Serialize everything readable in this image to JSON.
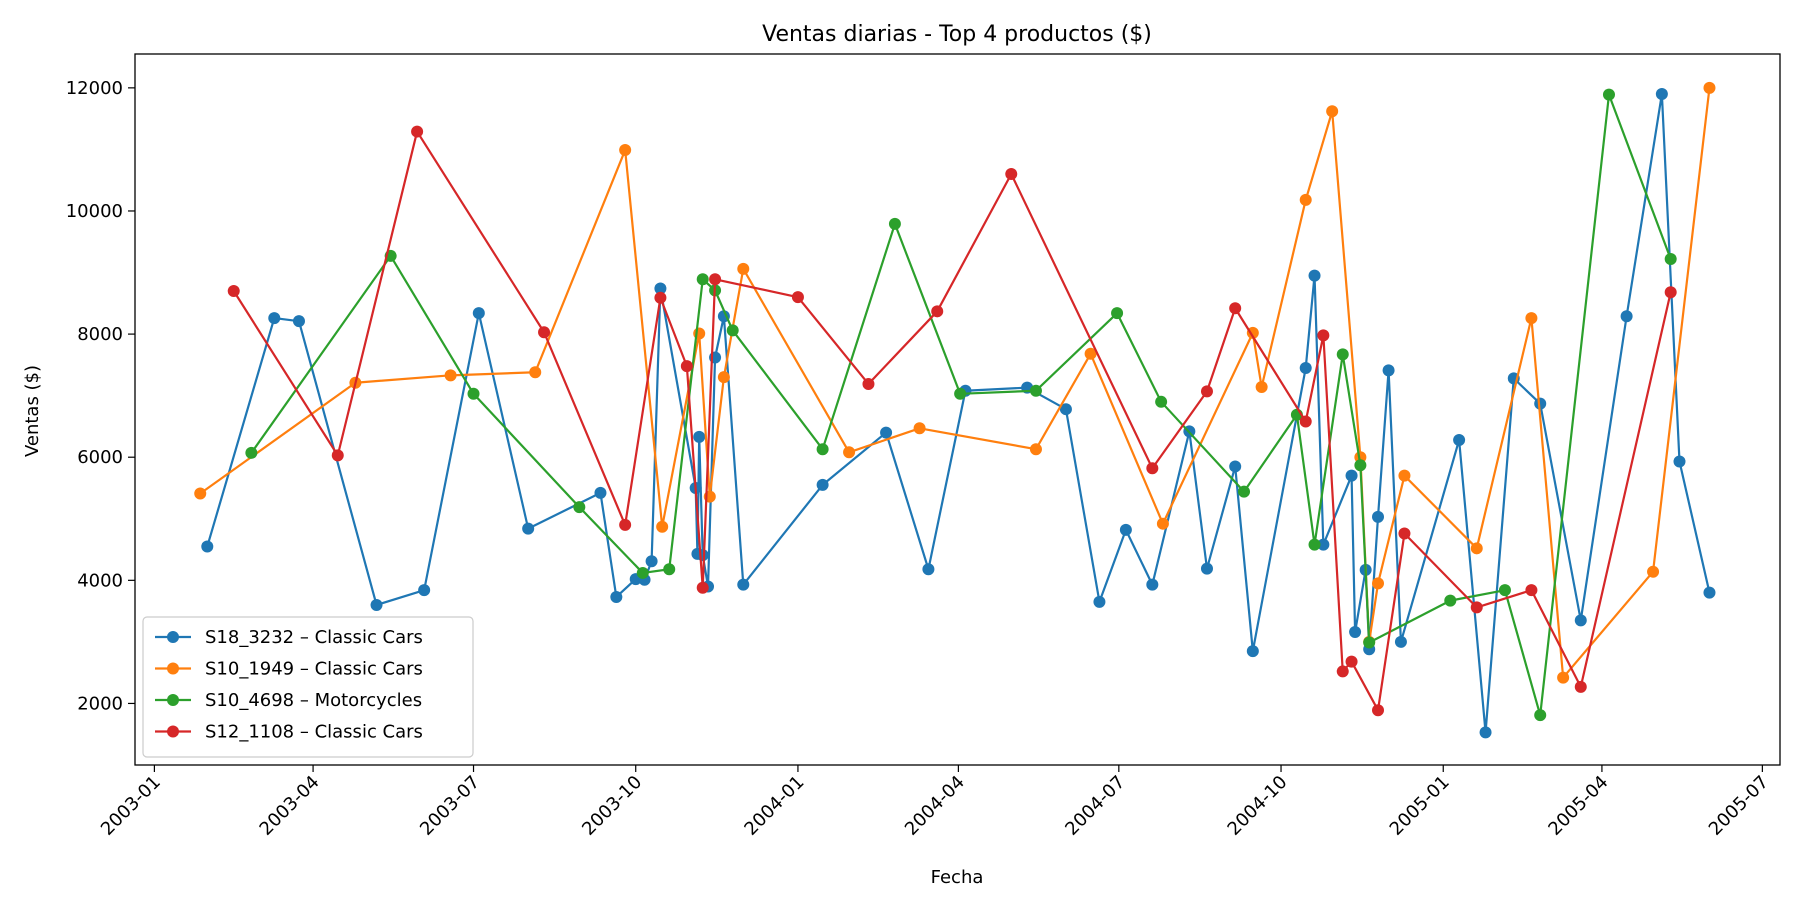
{
  "chart_data": {
    "type": "line",
    "title": "Ventas diarias - Top 4 productos ($)",
    "xlabel": "Fecha",
    "ylabel": "Ventas ($)",
    "x_type": "date",
    "xlim": [
      "2002-12-21",
      "2005-07-11"
    ],
    "ylim": [
      1000,
      12550
    ],
    "x_ticks": [
      "2003-01-01",
      "2003-04-01",
      "2003-07-01",
      "2003-10-01",
      "2004-01-01",
      "2004-04-01",
      "2004-07-01",
      "2004-10-01",
      "2005-01-01",
      "2005-04-01",
      "2005-07-01"
    ],
    "x_tick_labels": [
      "2003-01",
      "2003-04",
      "2003-07",
      "2003-10",
      "2004-01",
      "2004-04",
      "2004-07",
      "2004-10",
      "2005-01",
      "2005-04",
      "2005-07"
    ],
    "y_ticks": [
      2000,
      4000,
      6000,
      8000,
      10000,
      12000
    ],
    "y_tick_labels": [
      "2000",
      "4000",
      "6000",
      "8000",
      "10000",
      "12000"
    ],
    "grid": false,
    "legend_position": "lower-left",
    "series": [
      {
        "name": "S18_3232 – Classic Cars",
        "color": "#1f77b4",
        "points": [
          [
            "2003-01-31",
            4550
          ],
          [
            "2003-03-10",
            8260
          ],
          [
            "2003-03-24",
            8210
          ],
          [
            "2003-05-07",
            3600
          ],
          [
            "2003-06-03",
            3840
          ],
          [
            "2003-07-04",
            8340
          ],
          [
            "2003-08-01",
            4840
          ],
          [
            "2003-09-11",
            5420
          ],
          [
            "2003-09-20",
            3730
          ],
          [
            "2003-10-01",
            4020
          ],
          [
            "2003-10-06",
            4010
          ],
          [
            "2003-10-10",
            4310
          ],
          [
            "2003-10-15",
            8740
          ],
          [
            "2003-11-04",
            5500
          ],
          [
            "2003-11-05",
            4430
          ],
          [
            "2003-11-06",
            6330
          ],
          [
            "2003-11-08",
            4410
          ],
          [
            "2003-11-11",
            3900
          ],
          [
            "2003-11-15",
            7620
          ],
          [
            "2003-11-20",
            8290
          ],
          [
            "2003-12-01",
            3930
          ],
          [
            "2004-01-15",
            5550
          ],
          [
            "2004-02-20",
            6400
          ],
          [
            "2004-03-15",
            4180
          ],
          [
            "2004-04-05",
            7080
          ],
          [
            "2004-05-10",
            7130
          ],
          [
            "2004-06-01",
            6780
          ],
          [
            "2004-06-20",
            3650
          ],
          [
            "2004-07-05",
            4820
          ],
          [
            "2004-07-20",
            3930
          ],
          [
            "2004-08-10",
            6420
          ],
          [
            "2004-08-20",
            4190
          ],
          [
            "2004-09-05",
            5850
          ],
          [
            "2004-09-15",
            2850
          ],
          [
            "2004-10-15",
            7450
          ],
          [
            "2004-10-20",
            8950
          ],
          [
            "2004-10-25",
            4580
          ],
          [
            "2004-11-10",
            5700
          ],
          [
            "2004-11-12",
            3160
          ],
          [
            "2004-11-18",
            4170
          ],
          [
            "2004-11-20",
            2880
          ],
          [
            "2004-11-25",
            5030
          ],
          [
            "2004-12-01",
            7410
          ],
          [
            "2004-12-08",
            3000
          ],
          [
            "2005-01-10",
            6280
          ],
          [
            "2005-01-25",
            1530
          ],
          [
            "2005-02-10",
            7280
          ],
          [
            "2005-02-25",
            6870
          ],
          [
            "2005-03-20",
            3350
          ],
          [
            "2005-04-15",
            8290
          ],
          [
            "2005-05-05",
            11900
          ],
          [
            "2005-05-15",
            5930
          ],
          [
            "2005-06-01",
            3800
          ]
        ]
      },
      {
        "name": "S10_1949 – Classic Cars",
        "color": "#ff7f0e",
        "points": [
          [
            "2003-01-27",
            5410
          ],
          [
            "2003-04-25",
            7210
          ],
          [
            "2003-06-18",
            7330
          ],
          [
            "2003-08-05",
            7380
          ],
          [
            "2003-09-25",
            10990
          ],
          [
            "2003-10-16",
            4870
          ],
          [
            "2003-11-06",
            8010
          ],
          [
            "2003-11-12",
            5360
          ],
          [
            "2003-11-20",
            7300
          ],
          [
            "2003-12-01",
            9060
          ],
          [
            "2004-01-30",
            6080
          ],
          [
            "2004-03-10",
            6470
          ],
          [
            "2004-05-15",
            6130
          ],
          [
            "2004-06-15",
            7680
          ],
          [
            "2004-07-26",
            4920
          ],
          [
            "2004-09-15",
            8020
          ],
          [
            "2004-09-20",
            7140
          ],
          [
            "2004-10-15",
            10180
          ],
          [
            "2004-10-30",
            11620
          ],
          [
            "2004-11-15",
            6000
          ],
          [
            "2004-11-20",
            3000
          ],
          [
            "2004-11-25",
            3950
          ],
          [
            "2004-12-10",
            5700
          ],
          [
            "2005-01-20",
            4520
          ],
          [
            "2005-02-20",
            8260
          ],
          [
            "2005-03-10",
            2420
          ],
          [
            "2005-04-30",
            4140
          ],
          [
            "2005-06-01",
            12000
          ]
        ]
      },
      {
        "name": "S10_4698 – Motorcycles",
        "color": "#2ca02c",
        "points": [
          [
            "2003-02-25",
            6070
          ],
          [
            "2003-05-15",
            9270
          ],
          [
            "2003-07-01",
            7030
          ],
          [
            "2003-08-30",
            5190
          ],
          [
            "2003-10-05",
            4120
          ],
          [
            "2003-10-20",
            4180
          ],
          [
            "2003-11-08",
            8890
          ],
          [
            "2003-11-15",
            8710
          ],
          [
            "2003-11-25",
            8060
          ],
          [
            "2004-01-15",
            6130
          ],
          [
            "2004-02-25",
            9790
          ],
          [
            "2004-04-02",
            7030
          ],
          [
            "2004-05-15",
            7080
          ],
          [
            "2004-06-30",
            8340
          ],
          [
            "2004-07-25",
            6900
          ],
          [
            "2004-09-10",
            5440
          ],
          [
            "2004-10-10",
            6690
          ],
          [
            "2004-10-20",
            4580
          ],
          [
            "2004-11-05",
            7670
          ],
          [
            "2004-11-15",
            5870
          ],
          [
            "2004-11-20",
            2990
          ],
          [
            "2005-01-05",
            3670
          ],
          [
            "2005-02-05",
            3840
          ],
          [
            "2005-02-25",
            1810
          ],
          [
            "2005-04-05",
            11890
          ],
          [
            "2005-05-10",
            9220
          ]
        ]
      },
      {
        "name": "S12_1108 – Classic Cars",
        "color": "#d62728",
        "points": [
          [
            "2003-02-15",
            8700
          ],
          [
            "2003-04-15",
            6030
          ],
          [
            "2003-05-30",
            11290
          ],
          [
            "2003-08-10",
            8030
          ],
          [
            "2003-09-25",
            4900
          ],
          [
            "2003-10-15",
            8590
          ],
          [
            "2003-10-30",
            7480
          ],
          [
            "2003-11-08",
            3880
          ],
          [
            "2003-11-15",
            8890
          ],
          [
            "2004-01-01",
            8600
          ],
          [
            "2004-02-10",
            7190
          ],
          [
            "2004-03-20",
            8370
          ],
          [
            "2004-05-01",
            10600
          ],
          [
            "2004-07-20",
            5820
          ],
          [
            "2004-08-20",
            7070
          ],
          [
            "2004-09-05",
            8420
          ],
          [
            "2004-10-15",
            6580
          ],
          [
            "2004-10-25",
            7980
          ],
          [
            "2004-11-05",
            2520
          ],
          [
            "2004-11-10",
            2680
          ],
          [
            "2004-11-25",
            1890
          ],
          [
            "2004-12-10",
            4760
          ],
          [
            "2005-01-20",
            3560
          ],
          [
            "2005-02-20",
            3840
          ],
          [
            "2005-03-20",
            2270
          ],
          [
            "2005-05-10",
            8680
          ]
        ]
      }
    ]
  }
}
